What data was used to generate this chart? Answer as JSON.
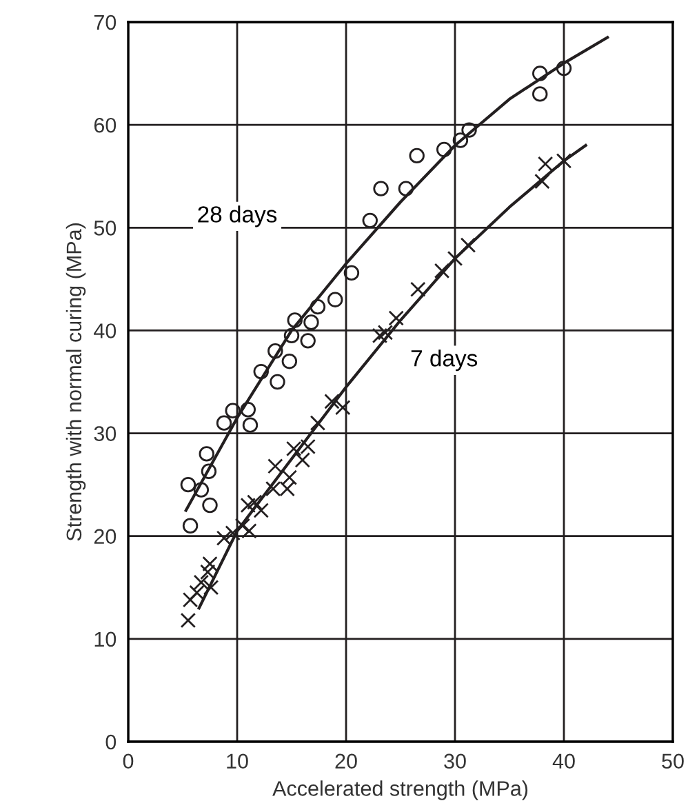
{
  "chart_data": {
    "type": "scatter",
    "xlabel": "Accelerated strength (MPa)",
    "ylabel": "Strength with normal curing (MPa)",
    "xlim": [
      0,
      50
    ],
    "ylim": [
      0,
      70
    ],
    "xticks": [
      0,
      10,
      20,
      30,
      40,
      50
    ],
    "yticks": [
      0,
      10,
      20,
      30,
      40,
      50,
      60,
      70
    ],
    "grid": true,
    "legend": false,
    "annotations": [
      "28 days",
      "7 days"
    ],
    "series": [
      {
        "marker": "circle",
        "color": "#231f20",
        "x": [
          5.5,
          5.7,
          6.7,
          7.2,
          7.4,
          7.5,
          8.8,
          9.6,
          11,
          11.2,
          12.2,
          13.5,
          13.7,
          14.8,
          15,
          15.3,
          16.5,
          16.8,
          17.4,
          19,
          20.5,
          22.2,
          23.2,
          25.5,
          26.5,
          29,
          30.5,
          31.3,
          37.8,
          37.8,
          40
        ],
        "values": [
          25,
          21,
          24.5,
          28,
          26.3,
          23,
          31,
          32.2,
          32.3,
          30.8,
          36,
          38,
          35,
          37,
          39.5,
          41,
          39,
          40.8,
          42.3,
          43,
          45.6,
          50.7,
          53.8,
          53.8,
          57,
          57.6,
          58.5,
          59.5,
          65,
          63,
          65.5
        ]
      },
      {
        "marker": "cross",
        "color": "#231f20",
        "x": [
          5.5,
          5.7,
          6.3,
          6.7,
          7.3,
          7.6,
          7.5,
          8.8,
          9.6,
          10.5,
          11,
          11.1,
          11.6,
          12.2,
          13.3,
          13.5,
          14.6,
          14.8,
          15.2,
          16,
          16.5,
          17.4,
          18.7,
          19.7,
          23.1,
          23.6,
          24.6,
          26.6,
          28.8,
          30,
          31.2,
          38,
          38.3,
          40
        ],
        "values": [
          11.8,
          13.8,
          14.5,
          15.5,
          16.5,
          15,
          17.3,
          19.8,
          20.3,
          21,
          23,
          20.5,
          23.3,
          22.5,
          24.6,
          26.8,
          24.6,
          25.7,
          28.5,
          27.4,
          28.7,
          31,
          33.1,
          32.5,
          39.5,
          39.8,
          41.2,
          44,
          45.8,
          47,
          48.3,
          54.5,
          56.2,
          56.5
        ]
      },
      {
        "type": "line",
        "marker": "none",
        "color": "#231f20",
        "x": [
          5.3,
          10,
          15,
          20,
          25,
          30,
          35,
          40,
          44
        ],
        "values": [
          22.5,
          31.5,
          40,
          46.5,
          52.5,
          58,
          62.5,
          66,
          68.5
        ]
      },
      {
        "type": "line",
        "marker": "none",
        "color": "#231f20",
        "x": [
          6.5,
          10,
          15,
          20,
          25,
          30,
          35,
          40,
          42
        ],
        "values": [
          13,
          20.5,
          27.5,
          34.5,
          41,
          47,
          52,
          56.5,
          58
        ]
      }
    ]
  }
}
